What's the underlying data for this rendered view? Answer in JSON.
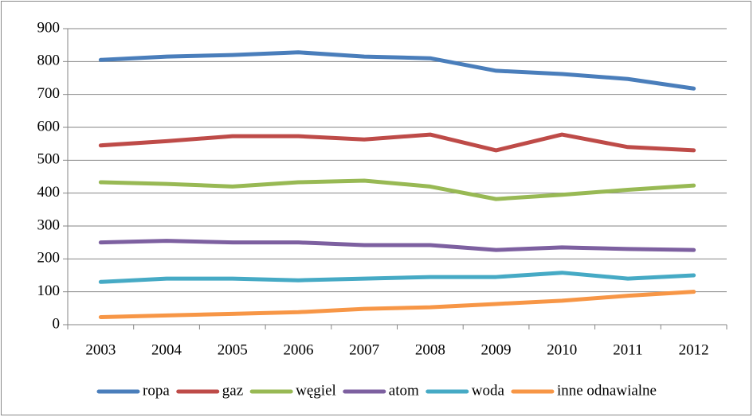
{
  "chart_data": {
    "type": "line",
    "categories": [
      "2003",
      "2004",
      "2005",
      "2006",
      "2007",
      "2008",
      "2009",
      "2010",
      "2011",
      "2012"
    ],
    "series": [
      {
        "name": "ropa",
        "color": "#4a7ebb",
        "values": [
          805,
          815,
          820,
          828,
          815,
          810,
          772,
          762,
          747,
          718
        ]
      },
      {
        "name": "gaz",
        "color": "#be4b48",
        "values": [
          545,
          558,
          573,
          573,
          563,
          578,
          530,
          578,
          540,
          530
        ]
      },
      {
        "name": "węgiel",
        "color": "#98b954",
        "values": [
          433,
          428,
          420,
          433,
          438,
          420,
          382,
          395,
          410,
          423
        ]
      },
      {
        "name": "atom",
        "color": "#7d60a0",
        "values": [
          250,
          255,
          250,
          250,
          242,
          242,
          227,
          235,
          230,
          227
        ]
      },
      {
        "name": "woda",
        "color": "#46aac5",
        "values": [
          130,
          140,
          140,
          135,
          140,
          145,
          145,
          158,
          140,
          150
        ]
      },
      {
        "name": "inne odnawialne",
        "color": "#f79646",
        "values": [
          23,
          28,
          33,
          38,
          48,
          53,
          63,
          73,
          88,
          100
        ]
      }
    ],
    "ylim": [
      0,
      900
    ],
    "yticks": [
      0,
      100,
      200,
      300,
      400,
      500,
      600,
      700,
      800,
      900
    ],
    "grid": true,
    "legend": "bottom"
  }
}
